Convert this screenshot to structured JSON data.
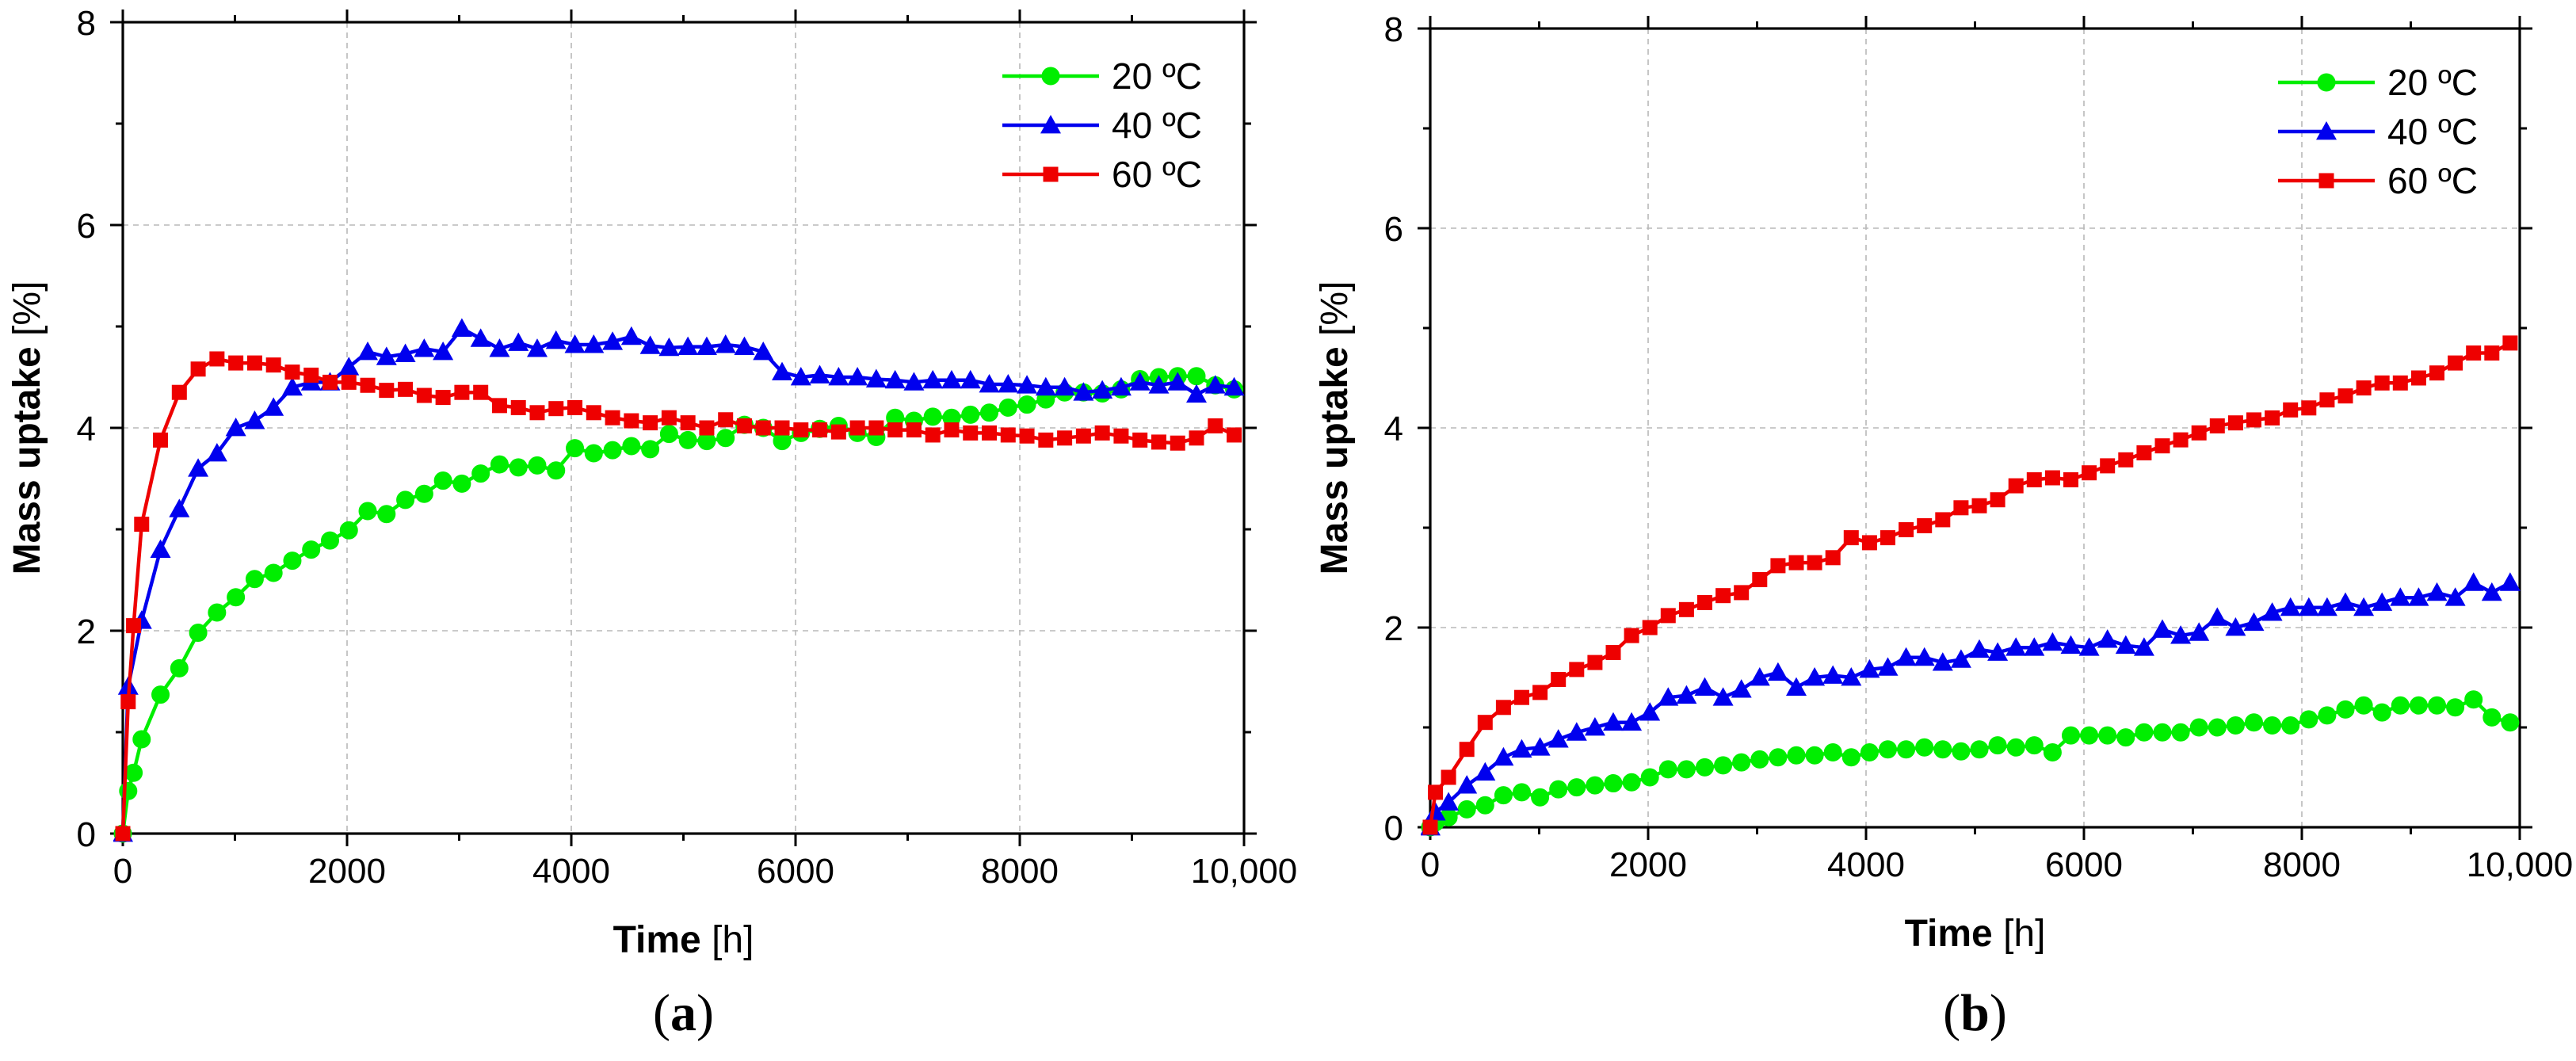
{
  "figure": {
    "panels": [
      "a",
      "b"
    ]
  },
  "chart_data": [
    {
      "type": "line",
      "panel_label_open": "(",
      "panel_label": "a",
      "panel_label_close": ")",
      "xlabel_bold": "Time",
      "xlabel_unit": "[h]",
      "ylabel_bold": "Mass uptake",
      "ylabel_unit": "[%]",
      "xlim": [
        0,
        10000
      ],
      "ylim": [
        0,
        8
      ],
      "xticks": [
        0,
        2000,
        4000,
        6000,
        8000,
        10000
      ],
      "xtick_labels": [
        "0",
        "2000",
        "4000",
        "6000",
        "8000",
        "10,000"
      ],
      "yticks": [
        0,
        2,
        4,
        6,
        8
      ],
      "ytick_labels": [
        "0",
        "2",
        "4",
        "6",
        "8"
      ],
      "grid": true,
      "legend_position": "top-right",
      "series": [
        {
          "name": "20 ºC",
          "color": "#00ee00",
          "marker": "circle",
          "x": [
            0,
            48,
            96,
            168,
            336,
            504,
            672,
            840,
            1008,
            1176,
            1344,
            1512,
            1680,
            1848,
            2016,
            2184,
            2352,
            2520,
            2688,
            2856,
            3024,
            3192,
            3360,
            3528,
            3696,
            3864,
            4032,
            4200,
            4368,
            4536,
            4704,
            4872,
            5040,
            5208,
            5376,
            5544,
            5712,
            5880,
            6048,
            6216,
            6384,
            6552,
            6720,
            6888,
            7056,
            7224,
            7392,
            7560,
            7728,
            7896,
            8064,
            8232,
            8400,
            8568,
            8736,
            8904,
            9072,
            9240,
            9408,
            9576,
            9744,
            9912
          ],
          "y": [
            0,
            0.42,
            0.6,
            0.93,
            1.37,
            1.63,
            1.98,
            2.18,
            2.33,
            2.51,
            2.57,
            2.69,
            2.8,
            2.89,
            2.99,
            3.18,
            3.15,
            3.29,
            3.35,
            3.48,
            3.45,
            3.55,
            3.64,
            3.61,
            3.63,
            3.58,
            3.8,
            3.75,
            3.78,
            3.82,
            3.79,
            3.94,
            3.88,
            3.87,
            3.9,
            4.03,
            4.0,
            3.87,
            3.95,
            3.99,
            4.02,
            3.95,
            3.91,
            4.1,
            4.07,
            4.11,
            4.1,
            4.13,
            4.15,
            4.2,
            4.23,
            4.28,
            4.35,
            4.35,
            4.34,
            4.38,
            4.48,
            4.5,
            4.51,
            4.51,
            4.42,
            4.38
          ]
        },
        {
          "name": "40 ºC",
          "color": "#0000ee",
          "marker": "triangle",
          "x": [
            0,
            48,
            168,
            336,
            504,
            672,
            840,
            1008,
            1176,
            1344,
            1512,
            1680,
            1848,
            2016,
            2184,
            2352,
            2520,
            2688,
            2856,
            3024,
            3192,
            3360,
            3528,
            3696,
            3864,
            4032,
            4200,
            4368,
            4536,
            4704,
            4872,
            5040,
            5208,
            5376,
            5544,
            5712,
            5880,
            6048,
            6216,
            6384,
            6552,
            6720,
            6888,
            7056,
            7224,
            7392,
            7560,
            7728,
            7896,
            8064,
            8232,
            8400,
            8568,
            8736,
            8904,
            9072,
            9240,
            9408,
            9576,
            9744,
            9912
          ],
          "y": [
            0,
            1.45,
            2.1,
            2.8,
            3.2,
            3.6,
            3.75,
            4.0,
            4.07,
            4.2,
            4.4,
            4.45,
            4.45,
            4.6,
            4.75,
            4.7,
            4.73,
            4.78,
            4.75,
            4.98,
            4.88,
            4.78,
            4.84,
            4.78,
            4.86,
            4.82,
            4.82,
            4.85,
            4.9,
            4.81,
            4.79,
            4.8,
            4.8,
            4.82,
            4.8,
            4.75,
            4.55,
            4.5,
            4.52,
            4.5,
            4.5,
            4.48,
            4.47,
            4.45,
            4.47,
            4.47,
            4.47,
            4.43,
            4.43,
            4.42,
            4.4,
            4.4,
            4.35,
            4.37,
            4.4,
            4.45,
            4.42,
            4.45,
            4.33,
            4.42,
            4.4
          ]
        },
        {
          "name": "60 ºC",
          "color": "#ee0000",
          "marker": "square",
          "x": [
            0,
            48,
            96,
            168,
            336,
            504,
            672,
            840,
            1008,
            1176,
            1344,
            1512,
            1680,
            1848,
            2016,
            2184,
            2352,
            2520,
            2688,
            2856,
            3024,
            3192,
            3360,
            3528,
            3696,
            3864,
            4032,
            4200,
            4368,
            4536,
            4704,
            4872,
            5040,
            5208,
            5376,
            5544,
            5712,
            5880,
            6048,
            6216,
            6384,
            6552,
            6720,
            6888,
            7056,
            7224,
            7392,
            7560,
            7728,
            7896,
            8064,
            8232,
            8400,
            8568,
            8736,
            8904,
            9072,
            9240,
            9408,
            9576,
            9744,
            9912
          ],
          "y": [
            0,
            1.3,
            2.05,
            3.05,
            3.88,
            4.35,
            4.58,
            4.68,
            4.64,
            4.64,
            4.62,
            4.55,
            4.52,
            4.45,
            4.45,
            4.42,
            4.37,
            4.38,
            4.32,
            4.3,
            4.35,
            4.35,
            4.22,
            4.2,
            4.15,
            4.19,
            4.2,
            4.15,
            4.1,
            4.07,
            4.05,
            4.1,
            4.05,
            4.0,
            4.08,
            4.02,
            4.0,
            4.0,
            3.98,
            3.98,
            3.96,
            4.0,
            4.0,
            3.98,
            3.98,
            3.93,
            3.98,
            3.95,
            3.95,
            3.93,
            3.92,
            3.88,
            3.9,
            3.92,
            3.95,
            3.92,
            3.88,
            3.86,
            3.85,
            3.9,
            4.02,
            3.93
          ]
        }
      ]
    },
    {
      "type": "line",
      "panel_label_open": "(",
      "panel_label": "b",
      "panel_label_close": ")",
      "xlabel_bold": "Time",
      "xlabel_unit": "[h]",
      "ylabel_bold": "Mass uptake",
      "ylabel_unit": "[%]",
      "xlim": [
        0,
        10000
      ],
      "ylim": [
        0,
        8
      ],
      "xticks": [
        0,
        2000,
        4000,
        6000,
        8000,
        10000
      ],
      "xtick_labels": [
        "0",
        "2000",
        "4000",
        "6000",
        "8000",
        "10,000"
      ],
      "yticks": [
        0,
        2,
        4,
        6,
        8
      ],
      "ytick_labels": [
        "0",
        "2",
        "4",
        "6",
        "8"
      ],
      "grid": true,
      "legend_position": "top-right",
      "series": [
        {
          "name": "20 ºC",
          "color": "#00ee00",
          "marker": "circle",
          "x": [
            0,
            48,
            168,
            336,
            504,
            672,
            840,
            1008,
            1176,
            1344,
            1512,
            1680,
            1848,
            2016,
            2184,
            2352,
            2520,
            2688,
            2856,
            3024,
            3192,
            3360,
            3528,
            3696,
            3864,
            4032,
            4200,
            4368,
            4536,
            4704,
            4872,
            5040,
            5208,
            5376,
            5544,
            5712,
            5880,
            6048,
            6216,
            6384,
            6552,
            6720,
            6888,
            7056,
            7224,
            7392,
            7560,
            7728,
            7896,
            8064,
            8232,
            8400,
            8568,
            8736,
            8904,
            9072,
            9240,
            9408,
            9576,
            9744,
            9912
          ],
          "y": [
            0,
            0.05,
            0.1,
            0.18,
            0.22,
            0.32,
            0.35,
            0.3,
            0.38,
            0.4,
            0.42,
            0.44,
            0.45,
            0.5,
            0.58,
            0.58,
            0.6,
            0.62,
            0.65,
            0.68,
            0.7,
            0.72,
            0.72,
            0.75,
            0.7,
            0.75,
            0.78,
            0.78,
            0.8,
            0.78,
            0.76,
            0.78,
            0.82,
            0.8,
            0.82,
            0.75,
            0.92,
            0.92,
            0.92,
            0.9,
            0.95,
            0.95,
            0.95,
            1.0,
            1.0,
            1.02,
            1.05,
            1.02,
            1.02,
            1.08,
            1.12,
            1.18,
            1.22,
            1.15,
            1.22,
            1.22,
            1.22,
            1.2,
            1.28,
            1.1,
            1.05
          ]
        },
        {
          "name": "40 ºC",
          "color": "#0000ee",
          "marker": "triangle",
          "x": [
            0,
            48,
            168,
            336,
            504,
            672,
            840,
            1008,
            1176,
            1344,
            1512,
            1680,
            1848,
            2016,
            2184,
            2352,
            2520,
            2688,
            2856,
            3024,
            3192,
            3360,
            3528,
            3696,
            3864,
            4032,
            4200,
            4368,
            4536,
            4704,
            4872,
            5040,
            5208,
            5376,
            5544,
            5712,
            5880,
            6048,
            6216,
            6384,
            6552,
            6720,
            6888,
            7056,
            7224,
            7392,
            7560,
            7728,
            7896,
            8064,
            8232,
            8400,
            8568,
            8736,
            8904,
            9072,
            9240,
            9408,
            9576,
            9744,
            9912
          ],
          "y": [
            0,
            0.15,
            0.25,
            0.42,
            0.55,
            0.7,
            0.78,
            0.8,
            0.88,
            0.95,
            1.0,
            1.05,
            1.05,
            1.15,
            1.3,
            1.32,
            1.4,
            1.3,
            1.38,
            1.5,
            1.55,
            1.4,
            1.5,
            1.52,
            1.5,
            1.58,
            1.6,
            1.7,
            1.7,
            1.65,
            1.68,
            1.78,
            1.75,
            1.8,
            1.8,
            1.85,
            1.82,
            1.8,
            1.88,
            1.82,
            1.8,
            1.98,
            1.92,
            1.95,
            2.1,
            2.0,
            2.05,
            2.15,
            2.2,
            2.2,
            2.2,
            2.25,
            2.2,
            2.25,
            2.3,
            2.3,
            2.35,
            2.3,
            2.45,
            2.35,
            2.45
          ]
        },
        {
          "name": "60 ºC",
          "color": "#ee0000",
          "marker": "square",
          "x": [
            0,
            48,
            168,
            336,
            504,
            672,
            840,
            1008,
            1176,
            1344,
            1512,
            1680,
            1848,
            2016,
            2184,
            2352,
            2520,
            2688,
            2856,
            3024,
            3192,
            3360,
            3528,
            3696,
            3864,
            4032,
            4200,
            4368,
            4536,
            4704,
            4872,
            5040,
            5208,
            5376,
            5544,
            5712,
            5880,
            6048,
            6216,
            6384,
            6552,
            6720,
            6888,
            7056,
            7224,
            7392,
            7560,
            7728,
            7896,
            8064,
            8232,
            8400,
            8568,
            8736,
            8904,
            9072,
            9240,
            9408,
            9576,
            9744,
            9912
          ],
          "y": [
            0,
            0.35,
            0.5,
            0.78,
            1.05,
            1.2,
            1.3,
            1.35,
            1.48,
            1.58,
            1.65,
            1.75,
            1.92,
            2.0,
            2.12,
            2.18,
            2.25,
            2.32,
            2.35,
            2.48,
            2.62,
            2.65,
            2.65,
            2.7,
            2.9,
            2.85,
            2.9,
            2.98,
            3.02,
            3.08,
            3.2,
            3.22,
            3.28,
            3.42,
            3.48,
            3.5,
            3.48,
            3.55,
            3.62,
            3.68,
            3.75,
            3.82,
            3.88,
            3.95,
            4.02,
            4.05,
            4.08,
            4.1,
            4.18,
            4.2,
            4.28,
            4.32,
            4.4,
            4.45,
            4.45,
            4.5,
            4.55,
            4.65,
            4.75,
            4.75,
            4.85
          ]
        }
      ]
    }
  ]
}
